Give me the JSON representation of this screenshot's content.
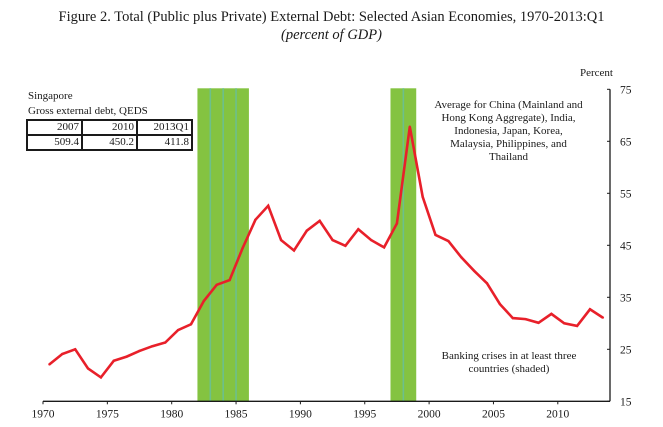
{
  "figure": {
    "title": "Figure 2. Total (Public plus Private) External Debt: Selected Asian Economies, 1970-2013:Q1",
    "subtitle": "(percent of GDP)"
  },
  "annotations": {
    "series_note": "Average for China (Mainland and Hong Kong Aggregate), India, Indonesia, Japan, Korea, Malaysia, Philippines, and Thailand",
    "series_note_lines": [
      "Average for China (Mainland and",
      "Hong Kong Aggregate), India,",
      "Indonesia, Japan, Korea,",
      "Malaysia, Philippines, and",
      "Thailand"
    ],
    "crisis_note_lines": [
      "Banking crises in at least three",
      "countries (shaded)"
    ]
  },
  "inset": {
    "title": "Singapore",
    "subtitle": "Gross external debt, QEDS",
    "headers": [
      "2007",
      "2010",
      "2013Q1"
    ],
    "values": [
      "509.4",
      "450.2",
      "411.8"
    ]
  },
  "colors": {
    "line": "#e8202a",
    "shade": "#84c341",
    "shade_divider": "#6cc08c",
    "axis": "#1a1a1a"
  },
  "chart_data": {
    "type": "line",
    "title": "Figure 2. Total (Public plus Private) External Debt: Selected Asian Economies, 1970-2013:Q1",
    "subtitle": "(percent of GDP)",
    "xlabel": "",
    "ylabel": "Percent",
    "y_axis_side": "right",
    "xlim": [
      1970,
      2014.4
    ],
    "ylim": [
      15,
      75
    ],
    "x_ticks": [
      1970,
      1975,
      1980,
      1985,
      1990,
      1995,
      2000,
      2005,
      2010
    ],
    "x_tick_labels": [
      "1970",
      "1975",
      "1980",
      "1985",
      "1990",
      "1995",
      "2000",
      "2005",
      "2010"
    ],
    "y_ticks": [
      15,
      25,
      35,
      45,
      55,
      65,
      75
    ],
    "y_tick_labels": [
      "15",
      "25",
      "35",
      "45",
      "55",
      "65",
      "75"
    ],
    "grid": false,
    "legend": "none",
    "series": [
      {
        "name": "Average for China (Mainland and Hong Kong Aggregate), India, Indonesia, Japan, Korea, Malaysia, Philippines, and Thailand",
        "x": [
          1970,
          1971,
          1972,
          1973,
          1974,
          1975,
          1976,
          1977,
          1978,
          1979,
          1980,
          1981,
          1982,
          1983,
          1984,
          1985,
          1986,
          1987,
          1988,
          1989,
          1990,
          1991,
          1992,
          1993,
          1994,
          1995,
          1996,
          1997,
          1998,
          1999,
          2000,
          2001,
          2002,
          2003,
          2004,
          2005,
          2006,
          2007,
          2008,
          2009,
          2010,
          2011,
          2012,
          2013
        ],
        "values": [
          22.1,
          24.1,
          25.0,
          21.3,
          19.6,
          22.8,
          23.6,
          24.7,
          25.6,
          26.3,
          28.7,
          29.8,
          34.3,
          37.4,
          38.3,
          44.4,
          49.9,
          52.6,
          46.0,
          44.0,
          47.8,
          49.7,
          46.0,
          44.9,
          48.1,
          46.0,
          44.6,
          49.2,
          67.8,
          54.3,
          47.0,
          45.8,
          42.7,
          40.1,
          37.7,
          33.7,
          31.0,
          30.8,
          30.1,
          31.8,
          30.0,
          29.5,
          32.7,
          31.1
        ]
      }
    ],
    "shaded_periods": [
      {
        "start": 1982,
        "end": 1986,
        "label": "Banking crises in at least three countries"
      },
      {
        "start": 1997,
        "end": 1999,
        "label": "Banking crises in at least three countries"
      }
    ],
    "shade_dividers": [
      1983,
      1984,
      1985,
      1998
    ]
  }
}
